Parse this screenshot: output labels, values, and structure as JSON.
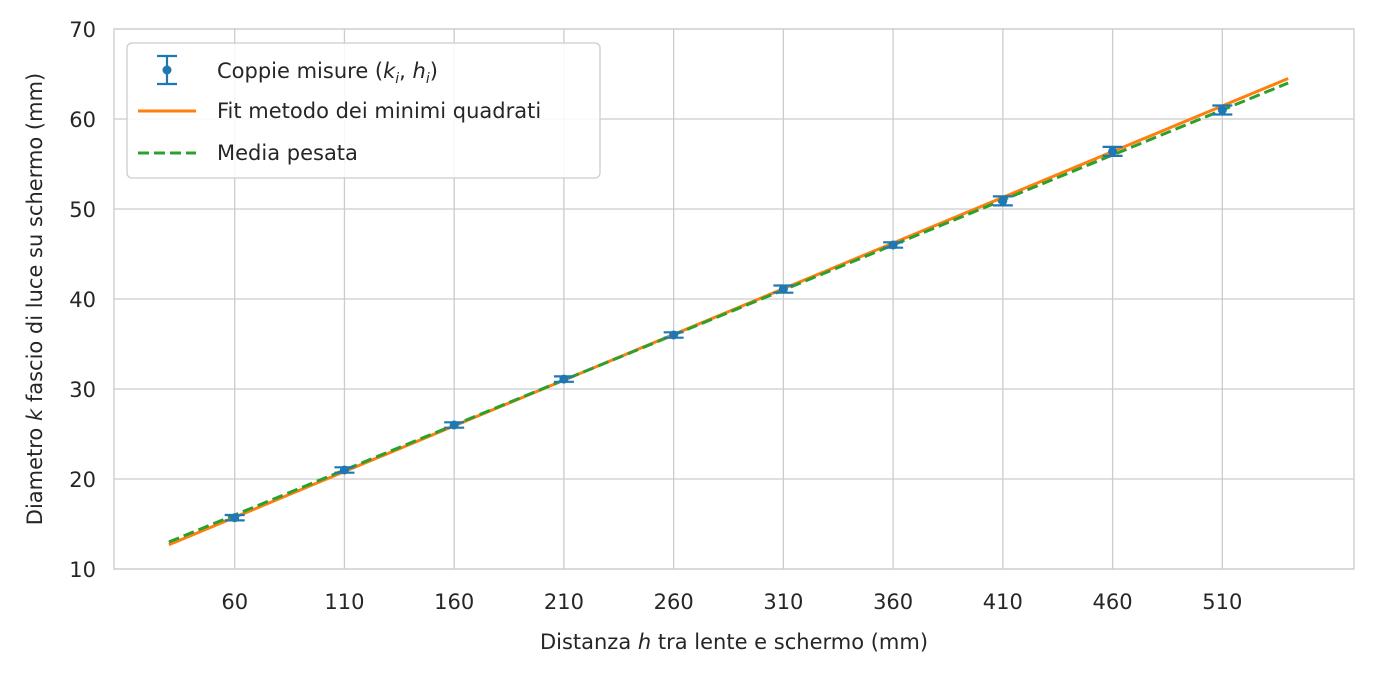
{
  "chart_data": {
    "type": "line",
    "title": "",
    "xlabel": {
      "pre": "Distanza ",
      "var": "h",
      "post": " tra lente e schermo (mm)"
    },
    "ylabel": {
      "pre": "Diametro ",
      "var": "k",
      "post": " fascio di luce su schermo (mm)"
    },
    "xlim": [
      5,
      570
    ],
    "ylim": [
      10,
      70
    ],
    "xticks": [
      60,
      110,
      160,
      210,
      260,
      310,
      360,
      410,
      460,
      510
    ],
    "yticks": [
      10,
      20,
      30,
      40,
      50,
      60,
      70
    ],
    "grid": true,
    "legend_position": "top-left",
    "series": [
      {
        "name": {
          "pre": "Coppie misure (",
          "v1": "k",
          "s1": "i",
          "mid": ", ",
          "v2": "h",
          "s2": "i",
          "post": ")"
        },
        "kind": "errorbar",
        "color": "#1f77b4",
        "x": [
          60,
          110,
          160,
          210,
          260,
          310,
          360,
          410,
          460,
          510
        ],
        "y": [
          15.7,
          21.0,
          26.0,
          31.1,
          36.0,
          41.1,
          46.0,
          50.9,
          56.4,
          61.0
        ],
        "yerr": [
          0.3,
          0.3,
          0.3,
          0.3,
          0.3,
          0.4,
          0.3,
          0.5,
          0.5,
          0.5
        ]
      },
      {
        "name": "Fit metodo dei minimi quadrati",
        "kind": "line",
        "color": "#ff7f0e",
        "x": [
          30,
          540
        ],
        "y": [
          12.7,
          64.5
        ]
      },
      {
        "name": "Media pesata",
        "kind": "dashed",
        "color": "#2ca02c",
        "x": [
          30,
          540
        ],
        "y": [
          13.0,
          64.0
        ]
      }
    ]
  }
}
